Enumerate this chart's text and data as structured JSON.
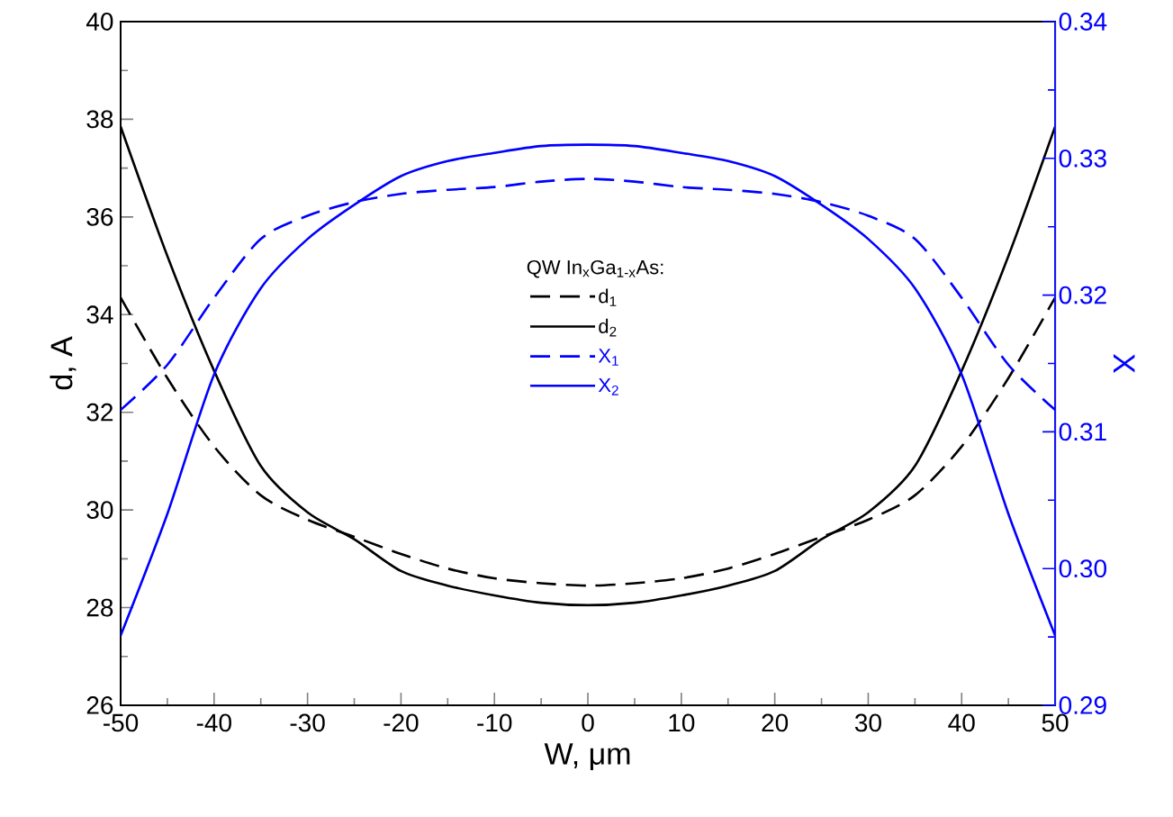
{
  "chart_data": {
    "type": "line",
    "xlabel": "W, μm",
    "ylabel": "d, A",
    "y2label": "X",
    "legend_title": "QW In$_{x}$Ga$_{1-x}$As:",
    "x": [
      -50,
      -45,
      -40,
      -35,
      -30,
      -25,
      -20,
      -15,
      -10,
      -5,
      0,
      5,
      10,
      15,
      20,
      25,
      30,
      35,
      40,
      45,
      50
    ],
    "series": [
      {
        "name": "d$_{1}$",
        "color": "#000000",
        "line_style": "dashed",
        "values": [
          34.35,
          32.7,
          31.3,
          30.3,
          29.8,
          29.45,
          29.1,
          28.8,
          28.6,
          28.5,
          28.45,
          28.5,
          28.6,
          28.8,
          29.1,
          29.45,
          29.8,
          30.3,
          31.3,
          32.7,
          34.35
        ]
      },
      {
        "name": "d$_{2}$",
        "color": "#000000",
        "line_style": "solid",
        "values": [
          37.85,
          35.2,
          32.85,
          30.9,
          29.95,
          29.4,
          28.75,
          28.45,
          28.25,
          28.1,
          28.05,
          28.1,
          28.25,
          28.45,
          28.75,
          29.4,
          29.95,
          30.9,
          32.85,
          35.2,
          37.85
        ]
      },
      {
        "name": "X$_{1}$",
        "color": "#0000ff",
        "line_style": "dashed",
        "axis": "y2",
        "values": [
          0.3116,
          0.3149,
          0.3198,
          0.3241,
          0.3258,
          0.3268,
          0.3274,
          0.3277,
          0.3279,
          0.3283,
          0.3285,
          0.3283,
          0.3279,
          0.3277,
          0.3274,
          0.3268,
          0.3258,
          0.3241,
          0.3198,
          0.3149,
          0.3116
        ]
      },
      {
        "name": "X$_{2}$",
        "color": "#0000ff",
        "line_style": "solid",
        "axis": "y2",
        "values": [
          0.2951,
          0.304,
          0.3142,
          0.3205,
          0.3241,
          0.3266,
          0.3287,
          0.3298,
          0.3304,
          0.3309,
          0.331,
          0.3309,
          0.3304,
          0.3298,
          0.3287,
          0.3266,
          0.3241,
          0.3205,
          0.3142,
          0.304,
          0.2951
        ]
      }
    ],
    "xlim": [
      -50,
      50
    ],
    "xticks": [
      -50,
      -40,
      -30,
      -20,
      -10,
      0,
      10,
      20,
      30,
      40,
      50
    ],
    "ylim": [
      26,
      40
    ],
    "yticks": [
      26,
      28,
      30,
      32,
      34,
      36,
      38,
      40
    ],
    "y2lim": [
      0.29,
      0.34
    ],
    "y2ticks": [
      {
        "value": 0.29,
        "label": "0.29"
      },
      {
        "value": 0.3,
        "label": "0.30"
      },
      0.31,
      0.32,
      0.33,
      0.34
    ],
    "grid": false,
    "legend": "center",
    "marker": "none"
  }
}
